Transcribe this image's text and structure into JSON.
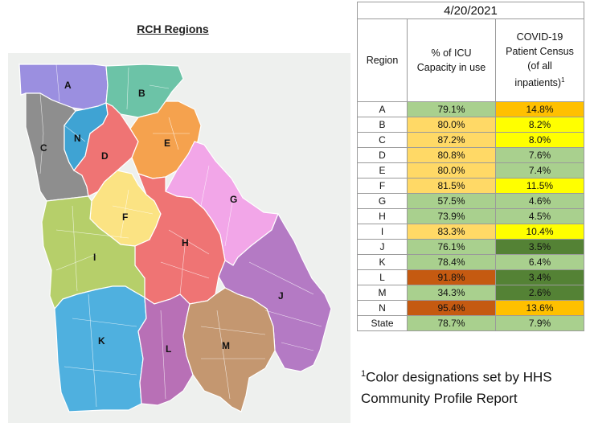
{
  "map": {
    "title": "RCH Regions",
    "regions": [
      {
        "label": "A",
        "color": "#9b8fe0"
      },
      {
        "label": "B",
        "color": "#6cc3a7"
      },
      {
        "label": "C",
        "color": "#8e8e8e"
      },
      {
        "label": "N",
        "color": "#3fa3d3"
      },
      {
        "label": "D",
        "color": "#ef7474"
      },
      {
        "label": "E",
        "color": "#f5a24e"
      },
      {
        "label": "G",
        "color": "#f2a6e8"
      },
      {
        "label": "F",
        "color": "#fbe383"
      },
      {
        "label": "H",
        "color": "#ef7474"
      },
      {
        "label": "I",
        "color": "#b6cf6a"
      },
      {
        "label": "J",
        "color": "#b47ac4"
      },
      {
        "label": "K",
        "color": "#4fb0df"
      },
      {
        "label": "L",
        "color": "#b870b6"
      },
      {
        "label": "M",
        "color": "#c49770"
      }
    ]
  },
  "table": {
    "date": "4/20/2021",
    "headers": {
      "region": "Region",
      "icu_line1": "% of ICU",
      "icu_line2": "Capacity in use",
      "census_line1": "COVID-19",
      "census_line2": "Patient Census",
      "census_line3": "(of all",
      "census_line4": "inpatients)",
      "census_sup": "1"
    },
    "rows": [
      {
        "region": "A",
        "icu": "79.1%",
        "icu_color": "#a9d08e",
        "census": "14.8%",
        "census_color": "#ffc000"
      },
      {
        "region": "B",
        "icu": "80.0%",
        "icu_color": "#ffd966",
        "census": "8.2%",
        "census_color": "#ffff00"
      },
      {
        "region": "C",
        "icu": "87.2%",
        "icu_color": "#ffd966",
        "census": "8.0%",
        "census_color": "#ffff00"
      },
      {
        "region": "D",
        "icu": "80.8%",
        "icu_color": "#ffd966",
        "census": "7.6%",
        "census_color": "#a9d08e"
      },
      {
        "region": "E",
        "icu": "80.0%",
        "icu_color": "#ffd966",
        "census": "7.4%",
        "census_color": "#a9d08e"
      },
      {
        "region": "F",
        "icu": "81.5%",
        "icu_color": "#ffd966",
        "census": "11.5%",
        "census_color": "#ffff00"
      },
      {
        "region": "G",
        "icu": "57.5%",
        "icu_color": "#a9d08e",
        "census": "4.6%",
        "census_color": "#a9d08e"
      },
      {
        "region": "H",
        "icu": "73.9%",
        "icu_color": "#a9d08e",
        "census": "4.5%",
        "census_color": "#a9d08e"
      },
      {
        "region": "I",
        "icu": "83.3%",
        "icu_color": "#ffd966",
        "census": "10.4%",
        "census_color": "#ffff00"
      },
      {
        "region": "J",
        "icu": "76.1%",
        "icu_color": "#a9d08e",
        "census": "3.5%",
        "census_color": "#548235"
      },
      {
        "region": "K",
        "icu": "78.4%",
        "icu_color": "#a9d08e",
        "census": "6.4%",
        "census_color": "#a9d08e"
      },
      {
        "region": "L",
        "icu": "91.8%",
        "icu_color": "#c55a11",
        "census": "3.4%",
        "census_color": "#548235"
      },
      {
        "region": "M",
        "icu": "34.3%",
        "icu_color": "#a9d08e",
        "census": "2.6%",
        "census_color": "#548235"
      },
      {
        "region": "N",
        "icu": "95.4%",
        "icu_color": "#c55a11",
        "census": "13.6%",
        "census_color": "#ffc000"
      },
      {
        "region": "State",
        "icu": "78.7%",
        "icu_color": "#a9d08e",
        "census": "7.9%",
        "census_color": "#a9d08e"
      }
    ]
  },
  "footnote": {
    "sup": "1",
    "text": "Color designations set by HHS Community Profile Report"
  }
}
